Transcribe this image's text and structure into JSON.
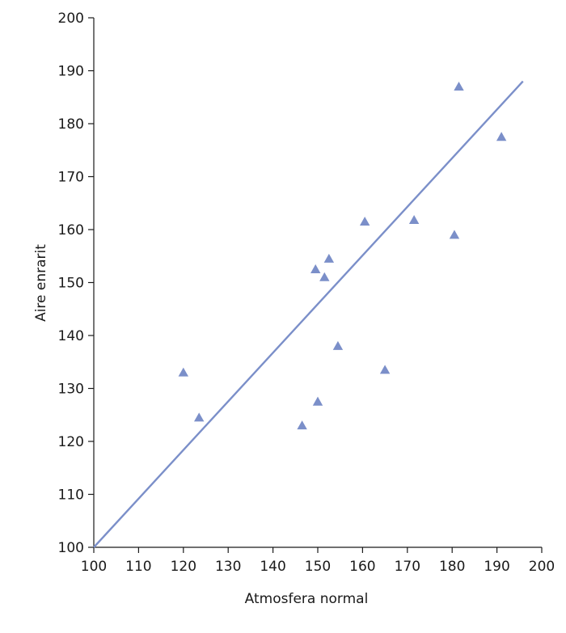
{
  "chart_data": {
    "type": "scatter",
    "xlabel": "Atmosfera normal",
    "ylabel": "Aire enrarit",
    "xlim": [
      100,
      200
    ],
    "ylim": [
      100,
      200
    ],
    "xticks": [
      "100",
      "110",
      "120",
      "130",
      "140",
      "150",
      "160",
      "170",
      "180",
      "190",
      "200"
    ],
    "yticks": [
      "100",
      "110",
      "120",
      "130",
      "140",
      "150",
      "160",
      "170",
      "180",
      "190",
      "200"
    ],
    "grid": false,
    "marker": "triangle",
    "color": "#7b8fc9",
    "series": [
      {
        "points": [
          {
            "x": 120,
            "y": 133
          },
          {
            "x": 123.5,
            "y": 124.5
          },
          {
            "x": 146.5,
            "y": 123
          },
          {
            "x": 149.5,
            "y": 152.5
          },
          {
            "x": 150,
            "y": 127.5
          },
          {
            "x": 151.5,
            "y": 151
          },
          {
            "x": 152.5,
            "y": 154.5
          },
          {
            "x": 154.5,
            "y": 138
          },
          {
            "x": 160.5,
            "y": 161.5
          },
          {
            "x": 165,
            "y": 133.5
          },
          {
            "x": 171.5,
            "y": 161.8
          },
          {
            "x": 180.5,
            "y": 159
          },
          {
            "x": 181.5,
            "y": 187
          },
          {
            "x": 191,
            "y": 177.5
          }
        ]
      }
    ],
    "fit_line": {
      "x": [
        100,
        195.8
      ],
      "y": [
        100,
        188
      ]
    }
  }
}
